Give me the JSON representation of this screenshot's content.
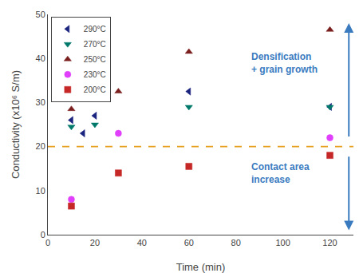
{
  "chart_data": {
    "type": "scatter",
    "title": "",
    "xlabel": "Time (min)",
    "ylabel": "Conductivity (x10⁶ S/m)",
    "xlim": [
      0,
      130
    ],
    "ylim": [
      0,
      50
    ],
    "xticks": [
      0,
      20,
      40,
      60,
      80,
      100,
      120
    ],
    "yticks": [
      0,
      10,
      20,
      30,
      40,
      50
    ],
    "grid": false,
    "legend": "upper left",
    "hline": {
      "y": 20,
      "color": "#E8A020",
      "line_style": "dashed"
    },
    "series": [
      {
        "name": "290°C",
        "color": "#1a237e",
        "marker": "triangle-left",
        "x": [
          10,
          15,
          20,
          60,
          120
        ],
        "values": [
          26.0,
          23.0,
          27.0,
          32.5,
          29.0
        ]
      },
      {
        "name": "270°C",
        "color": "#00796b",
        "marker": "triangle-down",
        "x": [
          10,
          20,
          60,
          120
        ],
        "values": [
          24.5,
          25.0,
          29.0,
          29.0
        ]
      },
      {
        "name": "250°C",
        "color": "#7b1e1e",
        "marker": "triangle-up",
        "x": [
          10,
          30,
          60,
          120
        ],
        "values": [
          28.5,
          32.5,
          41.5,
          46.5
        ]
      },
      {
        "name": "230°C",
        "color": "#e040fb",
        "marker": "circle",
        "x": [
          10,
          30,
          120
        ],
        "values": [
          8.0,
          23.0,
          22.0
        ]
      },
      {
        "name": "200°C",
        "color": "#c62828",
        "marker": "square",
        "x": [
          10,
          30,
          60,
          120
        ],
        "values": [
          6.5,
          14.0,
          15.5,
          18.0
        ]
      }
    ],
    "annotations": [
      {
        "text": "Densification\n+ grain growth",
        "color": "#3a7bbf",
        "arrow": "up"
      },
      {
        "text": "Contact area\nincrease",
        "color": "#3a7bbf",
        "arrow": "down"
      }
    ]
  }
}
